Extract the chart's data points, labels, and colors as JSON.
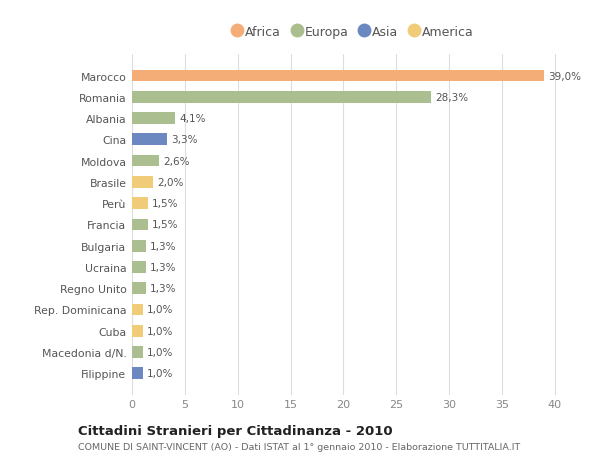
{
  "categories": [
    "Marocco",
    "Romania",
    "Albania",
    "Cina",
    "Moldova",
    "Brasile",
    "Perù",
    "Francia",
    "Bulgaria",
    "Ucraina",
    "Regno Unito",
    "Rep. Dominicana",
    "Cuba",
    "Macedonia d/N.",
    "Filippine"
  ],
  "values": [
    39.0,
    28.3,
    4.1,
    3.3,
    2.6,
    2.0,
    1.5,
    1.5,
    1.3,
    1.3,
    1.3,
    1.0,
    1.0,
    1.0,
    1.0
  ],
  "labels": [
    "39,0%",
    "28,3%",
    "4,1%",
    "3,3%",
    "2,6%",
    "2,0%",
    "1,5%",
    "1,5%",
    "1,3%",
    "1,3%",
    "1,3%",
    "1,0%",
    "1,0%",
    "1,0%",
    "1,0%"
  ],
  "continents": [
    "Africa",
    "Europa",
    "Europa",
    "Asia",
    "Europa",
    "America",
    "America",
    "Europa",
    "Europa",
    "Europa",
    "Europa",
    "America",
    "America",
    "Europa",
    "Asia"
  ],
  "continent_colors": {
    "Africa": "#F5AD78",
    "Europa": "#ABBE8F",
    "Asia": "#6B88C0",
    "America": "#F0CC78"
  },
  "legend_order": [
    "Africa",
    "Europa",
    "Asia",
    "America"
  ],
  "title": "Cittadini Stranieri per Cittadinanza - 2010",
  "subtitle": "COMUNE DI SAINT-VINCENT (AO) - Dati ISTAT al 1° gennaio 2010 - Elaborazione TUTTITALIA.IT",
  "xlim": [
    0,
    42
  ],
  "xticks": [
    0,
    5,
    10,
    15,
    20,
    25,
    30,
    35,
    40
  ],
  "bg_color": "#FFFFFF",
  "grid_color": "#DDDDDD",
  "bar_height": 0.55
}
